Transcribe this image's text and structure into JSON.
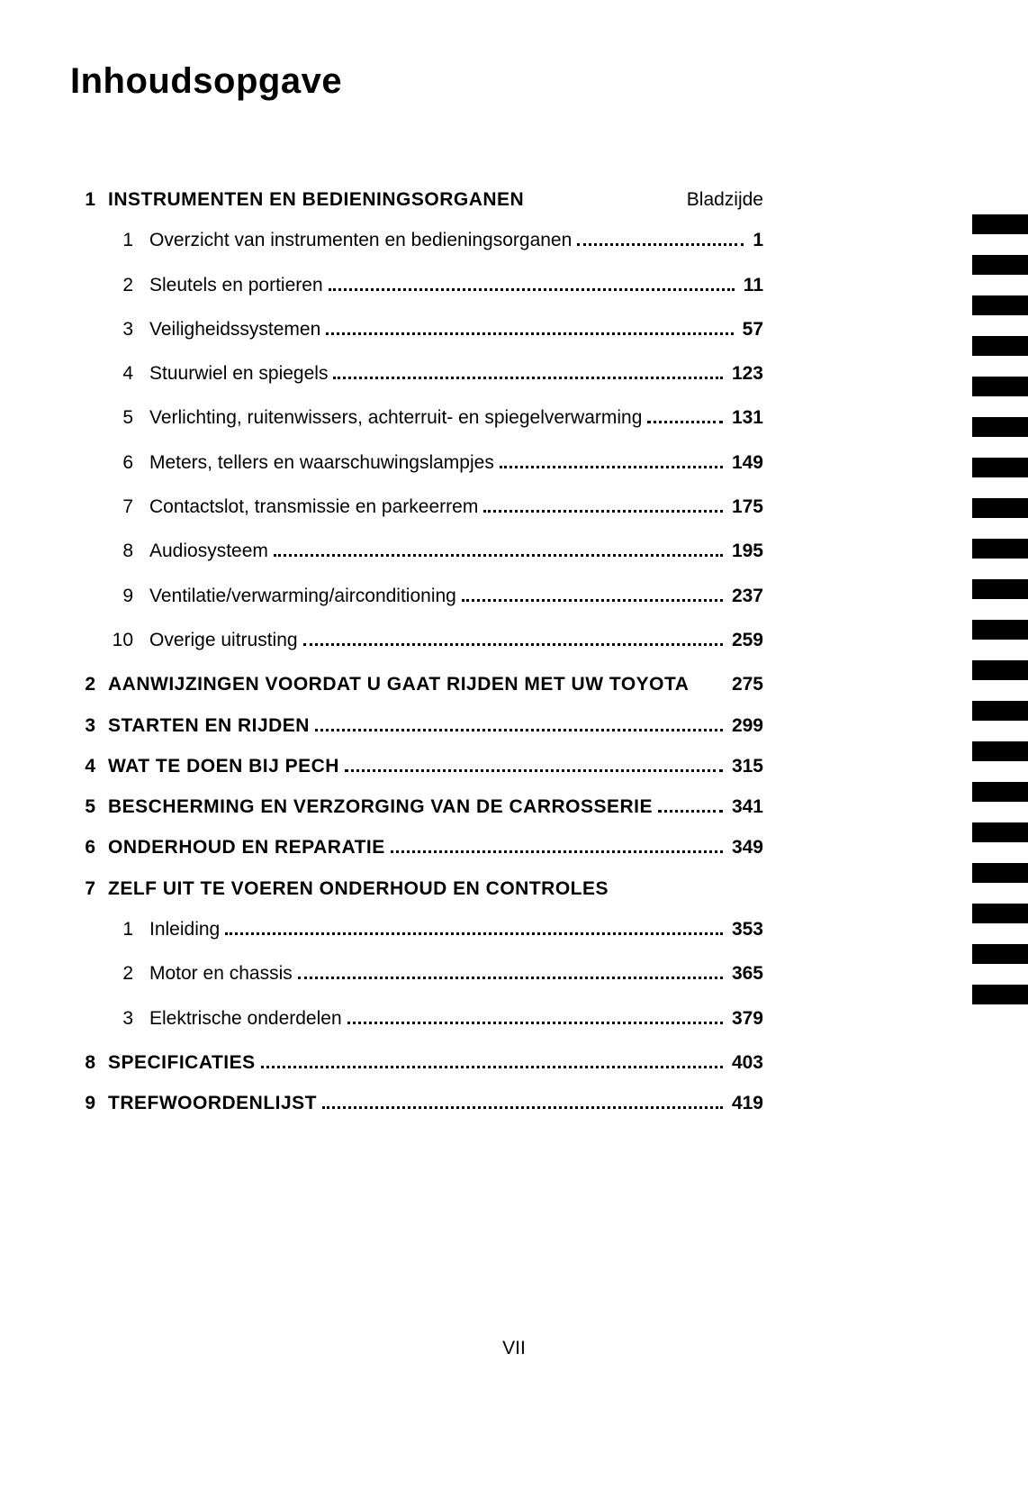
{
  "title": "Inhoudsopgave",
  "page_label": "Bladzijde",
  "footer": "VII",
  "tab_top_start": 238,
  "tab_spacing": 45,
  "tab_count": 20,
  "tab_width": 62,
  "tab_height": 22,
  "tab_color": "#000000",
  "chapters": [
    {
      "num": "1",
      "title": "INSTRUMENTEN EN BEDIENINGSORGANEN",
      "page": null,
      "show_page_label": true,
      "subs": [
        {
          "num": "1",
          "title": "Overzicht van instrumenten en bedieningsorganen",
          "page": "1"
        },
        {
          "num": "2",
          "title": "Sleutels en portieren",
          "page": "11"
        },
        {
          "num": "3",
          "title": "Veiligheidssystemen",
          "page": "57"
        },
        {
          "num": "4",
          "title": "Stuurwiel en spiegels",
          "page": "123"
        },
        {
          "num": "5",
          "title": "Verlichting, ruitenwissers, achterruit- en spiegelverwarming",
          "page": "131"
        },
        {
          "num": "6",
          "title": "Meters, tellers en waarschuwingslampjes",
          "page": "149"
        },
        {
          "num": "7",
          "title": "Contactslot, transmissie en parkeerrem",
          "page": "175"
        },
        {
          "num": "8",
          "title": "Audiosysteem",
          "page": "195"
        },
        {
          "num": "9",
          "title": "Ventilatie/verwarming/airconditioning",
          "page": "237"
        },
        {
          "num": "10",
          "title": "Overige uitrusting",
          "page": "259"
        }
      ]
    },
    {
      "num": "2",
      "title": "AANWIJZINGEN VOORDAT U GAAT RIJDEN MET UW TOYOTA",
      "page": "275",
      "no_dots": true
    },
    {
      "num": "3",
      "title": "STARTEN EN RIJDEN",
      "page": "299"
    },
    {
      "num": "4",
      "title": "WAT TE DOEN BIJ PECH",
      "page": "315"
    },
    {
      "num": "5",
      "title": "BESCHERMING EN VERZORGING VAN DE CARROSSERIE",
      "page": "341"
    },
    {
      "num": "6",
      "title": "ONDERHOUD EN REPARATIE",
      "page": "349"
    },
    {
      "num": "7",
      "title": "ZELF UIT TE VOEREN ONDERHOUD EN CONTROLES",
      "page": null,
      "subs": [
        {
          "num": "1",
          "title": "Inleiding",
          "page": "353"
        },
        {
          "num": "2",
          "title": "Motor en chassis",
          "page": "365"
        },
        {
          "num": "3",
          "title": "Elektrische onderdelen",
          "page": "379"
        }
      ]
    },
    {
      "num": "8",
      "title": "SPECIFICATIES",
      "page": "403"
    },
    {
      "num": "9",
      "title": "TREFWOORDENLIJST",
      "page": "419"
    }
  ]
}
